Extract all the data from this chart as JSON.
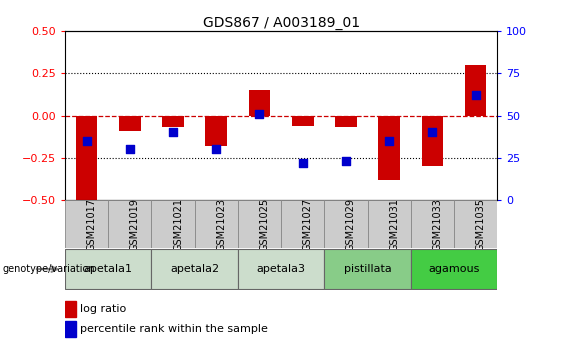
{
  "title": "GDS867 / A003189_01",
  "samples": [
    "GSM21017",
    "GSM21019",
    "GSM21021",
    "GSM21023",
    "GSM21025",
    "GSM21027",
    "GSM21029",
    "GSM21031",
    "GSM21033",
    "GSM21035"
  ],
  "log_ratio": [
    -0.5,
    -0.09,
    -0.07,
    -0.18,
    0.15,
    -0.06,
    -0.07,
    -0.38,
    -0.3,
    0.3
  ],
  "percentile_rank_pct": [
    35,
    30,
    40,
    30,
    51,
    22,
    23,
    35,
    40,
    62
  ],
  "ylim_left": [
    -0.5,
    0.5
  ],
  "ylim_right": [
    0,
    100
  ],
  "yticks_left": [
    -0.5,
    -0.25,
    0.0,
    0.25,
    0.5
  ],
  "yticks_right": [
    0,
    25,
    50,
    75,
    100
  ],
  "bar_color": "#cc0000",
  "dot_color": "#0000cc",
  "zero_line_color": "#cc0000",
  "grid_color": "#000000",
  "groups": [
    {
      "label": "apetala1",
      "start": 0,
      "end": 2,
      "color": "#ccddcc"
    },
    {
      "label": "apetala2",
      "start": 2,
      "end": 4,
      "color": "#ccddcc"
    },
    {
      "label": "apetala3",
      "start": 4,
      "end": 6,
      "color": "#ccddcc"
    },
    {
      "label": "pistillata",
      "start": 6,
      "end": 8,
      "color": "#88cc88"
    },
    {
      "label": "agamous",
      "start": 8,
      "end": 10,
      "color": "#44cc44"
    }
  ],
  "genotype_label": "genotype/variation",
  "legend_log_ratio": "log ratio",
  "legend_percentile": "percentile rank within the sample",
  "bar_width": 0.5,
  "dot_size": 40,
  "sample_box_color": "#cccccc",
  "sample_box_edge": "#888888"
}
